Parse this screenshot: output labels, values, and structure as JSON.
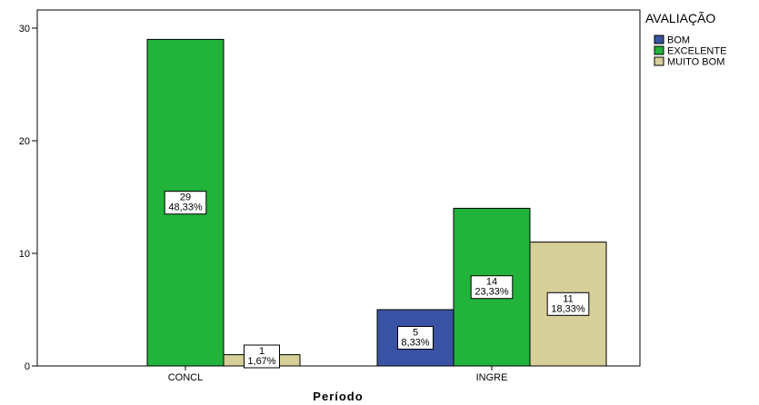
{
  "chart_data": {
    "type": "bar",
    "xlabel": "Período",
    "ylabel": "",
    "ylim": [
      0,
      32
    ],
    "yticks": [
      0,
      10,
      20,
      30
    ],
    "categories": [
      "CONCL",
      "INGRE"
    ],
    "legend_title": "AVALIAÇÃO",
    "legend_position": "top-right",
    "grid": false,
    "series": [
      {
        "name": "BOM",
        "color": "#3a52a4",
        "values": [
          null,
          5
        ],
        "labels": [
          null,
          "5\n8,33%"
        ]
      },
      {
        "name": "EXCELENTE",
        "color": "#21b33a",
        "values": [
          29,
          14
        ],
        "labels": [
          "29\n48,33%",
          "14\n23,33%"
        ]
      },
      {
        "name": "MUITO BOM",
        "color": "#d6cf9a",
        "values": [
          1,
          11
        ],
        "labels": [
          "1\n1,67%",
          "11\n18,33%"
        ]
      }
    ]
  }
}
